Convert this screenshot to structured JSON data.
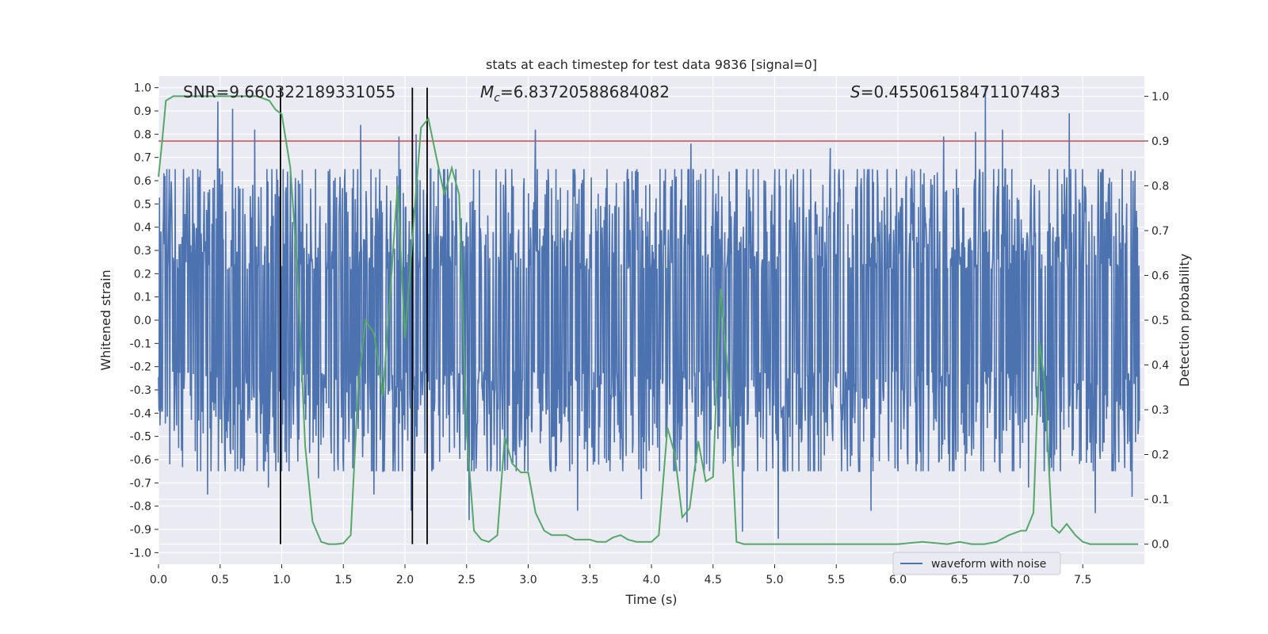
{
  "chart_data": {
    "type": "line",
    "title": "stats at each timestep for test data 9836 [signal=0]",
    "xlabel": "Time (s)",
    "ylabel_left": "Whitened strain",
    "ylabel_right": "Detection probability",
    "xlim": [
      0.0,
      8.0
    ],
    "ylim_left": [
      -1.05,
      1.05
    ],
    "ylim_right": [
      -0.045,
      1.045
    ],
    "x_ticks": [
      "0.0",
      "0.5",
      "1.0",
      "1.5",
      "2.0",
      "2.5",
      "3.0",
      "3.5",
      "4.0",
      "4.5",
      "5.0",
      "5.5",
      "6.0",
      "6.5",
      "7.0",
      "7.5"
    ],
    "y_ticks_left": [
      "-1.0",
      "-0.9",
      "-0.8",
      "-0.7",
      "-0.6",
      "-0.5",
      "-0.4",
      "-0.3",
      "-0.2",
      "-0.1",
      "0.0",
      "0.1",
      "0.2",
      "0.3",
      "0.4",
      "0.5",
      "0.6",
      "0.7",
      "0.8",
      "0.9",
      "1.0"
    ],
    "y_ticks_right": [
      "0.0",
      "0.1",
      "0.2",
      "0.3",
      "0.4",
      "0.5",
      "0.6",
      "0.7",
      "0.8",
      "0.9",
      "1.0"
    ],
    "grid": true,
    "annotations": {
      "snr": "SNR=9.660322189331055",
      "mc_symbol": "M",
      "mc_sub": "c",
      "mc_value": "=6.83720588684082",
      "s_symbol": "S",
      "s_value": "=0.45506158471107483"
    },
    "threshold_line": {
      "axis": "right",
      "value": 0.9,
      "color": "#c44e52"
    },
    "vertical_lines": [
      0.99,
      2.06,
      2.18
    ],
    "waveform": {
      "name": "waveform with noise",
      "color": "#4c72b0",
      "n_samples": 2000,
      "typical_amplitude": [
        -0.45,
        0.5
      ],
      "spikes": [
        {
          "t": 0.05,
          "v": 0.62
        },
        {
          "t": 0.09,
          "v": -0.62
        },
        {
          "t": 0.25,
          "v": 0.55
        },
        {
          "t": 0.48,
          "v": 0.94
        },
        {
          "t": 0.6,
          "v": 0.91
        },
        {
          "t": 0.4,
          "v": -0.75
        },
        {
          "t": 0.89,
          "v": -0.72
        },
        {
          "t": 0.78,
          "v": 0.82
        },
        {
          "t": 1.3,
          "v": -0.68
        },
        {
          "t": 1.64,
          "v": 0.84
        },
        {
          "t": 1.75,
          "v": -0.75
        },
        {
          "t": 1.95,
          "v": 0.79
        },
        {
          "t": 2.05,
          "v": -0.82
        },
        {
          "t": 2.09,
          "v": 0.8
        },
        {
          "t": 2.52,
          "v": -0.86
        },
        {
          "t": 3.06,
          "v": 0.82
        },
        {
          "t": 3.4,
          "v": -0.82
        },
        {
          "t": 3.92,
          "v": -0.77
        },
        {
          "t": 4.29,
          "v": -0.87
        },
        {
          "t": 4.32,
          "v": 0.76
        },
        {
          "t": 4.74,
          "v": -0.91
        },
        {
          "t": 5.03,
          "v": -0.94
        },
        {
          "t": 5.45,
          "v": 0.74
        },
        {
          "t": 5.78,
          "v": -0.82
        },
        {
          "t": 6.37,
          "v": 0.79
        },
        {
          "t": 6.71,
          "v": 1.0
        },
        {
          "t": 6.63,
          "v": 0.81
        },
        {
          "t": 6.85,
          "v": 0.82
        },
        {
          "t": 7.06,
          "v": -0.72
        },
        {
          "t": 7.39,
          "v": 0.89
        },
        {
          "t": 7.6,
          "v": -0.83
        },
        {
          "t": 7.9,
          "v": -0.76
        }
      ]
    },
    "probability": {
      "name": "detection probability",
      "color": "#55a868",
      "x": [
        0.0,
        0.03,
        0.06,
        0.12,
        0.2,
        0.4,
        0.6,
        0.8,
        0.9,
        0.95,
        1.0,
        1.07,
        1.13,
        1.19,
        1.25,
        1.32,
        1.38,
        1.44,
        1.5,
        1.56,
        1.62,
        1.68,
        1.75,
        1.82,
        1.88,
        1.94,
        2.0,
        2.06,
        2.13,
        2.19,
        2.25,
        2.32,
        2.38,
        2.44,
        2.5,
        2.56,
        2.62,
        2.68,
        2.75,
        2.81,
        2.87,
        2.94,
        3.0,
        3.06,
        3.13,
        3.19,
        3.25,
        3.31,
        3.38,
        3.44,
        3.5,
        3.56,
        3.63,
        3.69,
        3.75,
        3.81,
        3.88,
        3.94,
        4.0,
        4.06,
        4.13,
        4.19,
        4.25,
        4.31,
        4.38,
        4.44,
        4.5,
        4.56,
        4.63,
        4.69,
        4.75,
        4.81,
        4.88,
        4.94,
        5.0,
        5.2,
        5.4,
        5.6,
        5.8,
        6.0,
        6.2,
        6.4,
        6.5,
        6.6,
        6.7,
        6.8,
        6.9,
        7.0,
        7.04,
        7.1,
        7.15,
        7.19,
        7.25,
        7.31,
        7.37,
        7.44,
        7.5,
        7.56,
        7.7,
        7.95
      ],
      "y": [
        0.82,
        0.9,
        0.99,
        1.0,
        1.0,
        1.0,
        1.0,
        1.0,
        0.99,
        0.97,
        0.96,
        0.84,
        0.6,
        0.22,
        0.05,
        0.005,
        0.0,
        0.0,
        0.002,
        0.02,
        0.35,
        0.5,
        0.47,
        0.33,
        0.56,
        0.8,
        0.46,
        0.68,
        0.93,
        0.95,
        0.87,
        0.78,
        0.84,
        0.78,
        0.25,
        0.03,
        0.01,
        0.005,
        0.02,
        0.24,
        0.18,
        0.16,
        0.16,
        0.07,
        0.03,
        0.02,
        0.02,
        0.02,
        0.01,
        0.01,
        0.01,
        0.005,
        0.005,
        0.015,
        0.02,
        0.01,
        0.005,
        0.005,
        0.005,
        0.02,
        0.26,
        0.2,
        0.06,
        0.08,
        0.23,
        0.14,
        0.15,
        0.57,
        0.35,
        0.005,
        0.0,
        0.0,
        0.0,
        0.0,
        0.0,
        0.0,
        0.0,
        0.0,
        0.0,
        0.0,
        0.005,
        0.0,
        0.005,
        0.0,
        0.0,
        0.005,
        0.02,
        0.03,
        0.03,
        0.07,
        0.45,
        0.36,
        0.04,
        0.025,
        0.045,
        0.02,
        0.005,
        0.0,
        0.0,
        0.0
      ]
    },
    "legend": {
      "placement": "lower-right",
      "entries": [
        "waveform with noise"
      ]
    }
  }
}
